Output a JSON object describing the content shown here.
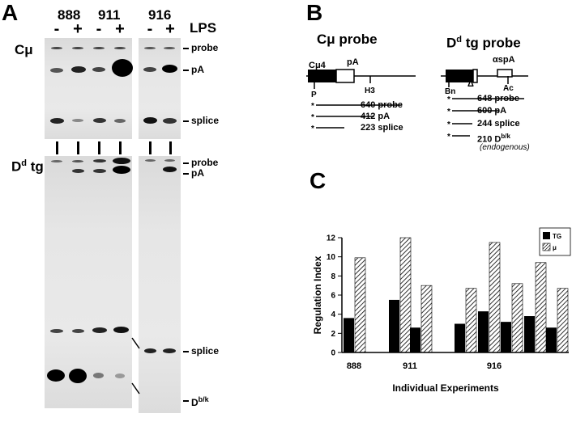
{
  "panel_a": {
    "letter": "A",
    "lanes": {
      "l888": "888",
      "l911": "911",
      "l916": "916"
    },
    "lps_label": "LPS",
    "signs": [
      "-",
      "+",
      "-",
      "+",
      "-",
      "+"
    ],
    "blot1_label": "Cμ",
    "blot2_label": "D",
    "blot2_sup": "d",
    "blot2_suffix": " tg",
    "blot1_bands": {
      "probe": "probe",
      "pa": "pA",
      "splice": "splice"
    },
    "blot2_bands": {
      "probe": "probe",
      "pa": "pA",
      "splice": "splice",
      "db": "D",
      "db_sup": "b/k"
    }
  },
  "panel_b": {
    "letter": "B",
    "c_probe": {
      "title": "Cμ probe",
      "exon": "Cμ4",
      "pa": "pA",
      "p": "P",
      "h3": "H3",
      "fragments": [
        "640 probe",
        "412 pA",
        "223 splice"
      ]
    },
    "d_probe": {
      "title_main": "D",
      "title_sup": "d",
      "title_rest": " tg probe",
      "aspa": "αspA",
      "bn": "Bn",
      "delta": "Δ",
      "ac": "Ac",
      "fragments": [
        "648 probe",
        "600 pA",
        "244 splice"
      ],
      "last_fragment_main": "210 D",
      "last_fragment_sup": "b/k",
      "endogenous": "(endogenous)"
    }
  },
  "panel_c": {
    "letter": "C",
    "chart_data": {
      "type": "bar",
      "ylabel": "Regulation Index",
      "xlabel": "Individual Experiments",
      "ylim": [
        0,
        12
      ],
      "yticks": [
        0,
        2,
        4,
        6,
        8,
        10,
        12
      ],
      "group_labels": [
        "888",
        "911",
        "916"
      ],
      "group_sizes": [
        1,
        2,
        5
      ],
      "legend_position": "top-right",
      "series": [
        {
          "name": "TG",
          "color": "#000000",
          "pattern": "solid",
          "values": [
            3.6,
            5.5,
            2.6,
            3.0,
            4.3,
            3.2,
            3.8,
            2.6
          ]
        },
        {
          "name": "μ",
          "color": "#000000",
          "pattern": "hatched",
          "values": [
            9.9,
            12.0,
            7.0,
            6.7,
            11.5,
            7.2,
            9.4,
            6.7
          ]
        }
      ]
    }
  }
}
